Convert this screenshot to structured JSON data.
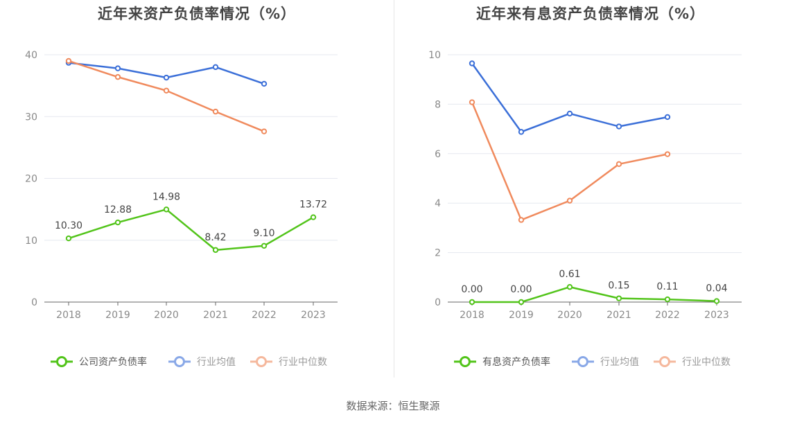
{
  "chart_data": [
    {
      "type": "line",
      "title": "近年来资产负债率情况（%）",
      "categories": [
        "2018",
        "2019",
        "2020",
        "2021",
        "2022",
        "2023"
      ],
      "ylim": [
        0,
        40
      ],
      "yticks": [
        0,
        10,
        20,
        30,
        40
      ],
      "grid": true,
      "legend_position": "bottom",
      "series": [
        {
          "name": "公司资产负债率",
          "color": "#52c41a",
          "values": [
            10.3,
            12.88,
            14.98,
            8.42,
            9.1,
            13.72
          ],
          "labels": [
            "10.30",
            "12.88",
            "14.98",
            "8.42",
            "9.10",
            "13.72"
          ],
          "legend_style": "primary"
        },
        {
          "name": "行业均值",
          "color": "#3b6fd8",
          "values": [
            38.7,
            37.8,
            36.3,
            38.0,
            35.3,
            null
          ],
          "legend_style": "faded"
        },
        {
          "name": "行业中位数",
          "color": "#f08a5d",
          "values": [
            39.0,
            36.4,
            34.2,
            30.8,
            27.6,
            null
          ],
          "legend_style": "faded"
        }
      ]
    },
    {
      "type": "line",
      "title": "近年来有息资产负债率情况（%）",
      "categories": [
        "2018",
        "2019",
        "2020",
        "2021",
        "2022",
        "2023"
      ],
      "ylim": [
        0,
        10
      ],
      "yticks": [
        0,
        2,
        4,
        6,
        8,
        10
      ],
      "grid": true,
      "legend_position": "bottom",
      "series": [
        {
          "name": "有息资产负债率",
          "color": "#52c41a",
          "values": [
            0.0,
            0.0,
            0.61,
            0.15,
            0.11,
            0.04
          ],
          "labels": [
            "0.00",
            "0.00",
            "0.61",
            "0.15",
            "0.11",
            "0.04"
          ],
          "legend_style": "primary"
        },
        {
          "name": "行业均值",
          "color": "#3b6fd8",
          "values": [
            9.65,
            6.88,
            7.62,
            7.1,
            7.48,
            null
          ],
          "legend_style": "faded"
        },
        {
          "name": "行业中位数",
          "color": "#f08a5d",
          "values": [
            8.08,
            3.32,
            4.1,
            5.58,
            5.98,
            null
          ],
          "legend_style": "faded"
        }
      ]
    }
  ],
  "source": "数据来源：恒生聚源"
}
